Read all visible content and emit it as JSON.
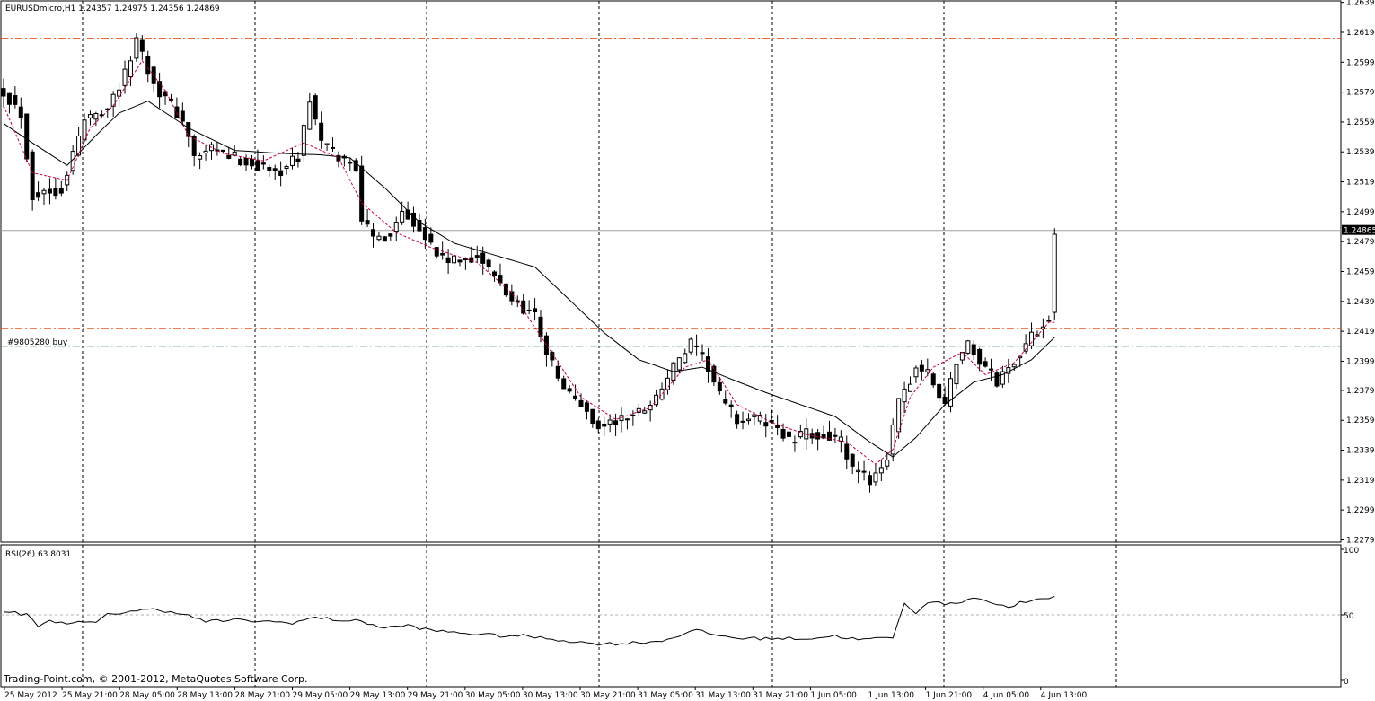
{
  "window": {
    "symbol_header": "EURUSDmicro,H1  1.24357 1.24975 1.24356 1.24869",
    "copyright": "Trading-Point.com, © 2001-2012, MetaQuotes Software Corp.",
    "current_price_label": "1.24865"
  },
  "order_line": {
    "label": "#9805280 buy",
    "price": 1.2409
  },
  "colors": {
    "background": "#ffffff",
    "grid": "#000000",
    "candle": "#000000",
    "ma_slow": "#000000",
    "ma_fast": "#c8003c",
    "level_lines": "#e8501c",
    "order_line": "#006a30",
    "price_line": "#a0a0a0",
    "rsi_line": "#000000",
    "rsi_level": "#b0b0b0"
  },
  "chart_data": [
    {
      "type": "candlestick",
      "price_ticks": [
        "1.26390",
        "1.26190",
        "1.25990",
        "1.25790",
        "1.25590",
        "1.25390",
        "1.25190",
        "1.24990",
        "1.24790",
        "1.24590",
        "1.24390",
        "1.24190",
        "1.23990",
        "1.23795",
        "1.23595",
        "1.23395",
        "1.23195",
        "1.22995",
        "1.22795"
      ],
      "ylim": [
        1.2278,
        1.264
      ],
      "time_labels": [
        "25 May 2012",
        "25 May 21:00",
        "28 May 05:00",
        "28 May 13:00",
        "28 May 21:00",
        "29 May 05:00",
        "29 May 13:00",
        "29 May 21:00",
        "30 May 05:00",
        "30 May 13:00",
        "30 May 21:00",
        "31 May 05:00",
        "31 May 13:00",
        "31 May 21:00",
        "1 Jun 05:00",
        "1 Jun 13:00",
        "1 Jun 21:00",
        "4 Jun 05:00",
        "4 Jun 13:00"
      ],
      "horizontal_levels": [
        1.2615,
        1.2421
      ],
      "current_price": 1.24865,
      "close_anchors": [
        [
          0,
          1.258
        ],
        [
          3,
          1.2565
        ],
        [
          5,
          1.251
        ],
        [
          10,
          1.2515
        ],
        [
          14,
          1.256
        ],
        [
          18,
          1.257
        ],
        [
          21,
          1.259
        ],
        [
          23,
          1.2615
        ],
        [
          26,
          1.2585
        ],
        [
          29,
          1.257
        ],
        [
          31,
          1.256
        ],
        [
          33,
          1.2535
        ],
        [
          36,
          1.254
        ],
        [
          40,
          1.2535
        ],
        [
          44,
          1.253
        ],
        [
          47,
          1.2525
        ],
        [
          51,
          1.2535
        ],
        [
          53,
          1.2575
        ],
        [
          55,
          1.2545
        ],
        [
          58,
          1.2535
        ],
        [
          61,
          1.253
        ],
        [
          62,
          1.2495
        ],
        [
          64,
          1.248
        ],
        [
          67,
          1.2485
        ],
        [
          69,
          1.25
        ],
        [
          72,
          1.249
        ],
        [
          75,
          1.247
        ],
        [
          78,
          1.2465
        ],
        [
          82,
          1.247
        ],
        [
          85,
          1.2455
        ],
        [
          88,
          1.244
        ],
        [
          92,
          1.243
        ],
        [
          94,
          1.2405
        ],
        [
          97,
          1.238
        ],
        [
          100,
          1.237
        ],
        [
          103,
          1.2355
        ],
        [
          107,
          1.236
        ],
        [
          110,
          1.2365
        ],
        [
          113,
          1.2375
        ],
        [
          116,
          1.2395
        ],
        [
          119,
          1.241
        ],
        [
          122,
          1.2395
        ],
        [
          124,
          1.2375
        ],
        [
          127,
          1.236
        ],
        [
          131,
          1.236
        ],
        [
          134,
          1.2355
        ],
        [
          136,
          1.2345
        ],
        [
          139,
          1.235
        ],
        [
          142,
          1.235
        ],
        [
          145,
          1.2345
        ],
        [
          147,
          1.2325
        ],
        [
          150,
          1.232
        ],
        [
          153,
          1.2335
        ],
        [
          155,
          1.237
        ],
        [
          158,
          1.2395
        ],
        [
          160,
          1.239
        ],
        [
          163,
          1.237
        ],
        [
          165,
          1.24
        ],
        [
          167,
          1.241
        ],
        [
          170,
          1.2395
        ],
        [
          172,
          1.2385
        ],
        [
          174,
          1.2395
        ],
        [
          176,
          1.2405
        ],
        [
          179,
          1.242
        ],
        [
          181,
          1.243
        ],
        [
          182,
          1.2487
        ]
      ],
      "series": [
        {
          "name": "",
          "role": "slow_ma",
          "anchors": [
            [
              0,
              1.2558
            ],
            [
              5,
              1.2545
            ],
            [
              11,
              1.253
            ],
            [
              16,
              1.255
            ],
            [
              20,
              1.2565
            ],
            [
              25,
              1.2573
            ],
            [
              32,
              1.2555
            ],
            [
              40,
              1.254
            ],
            [
              48,
              1.2538
            ],
            [
              55,
              1.2537
            ],
            [
              60,
              1.2535
            ],
            [
              66,
              1.2515
            ],
            [
              72,
              1.2492
            ],
            [
              78,
              1.2478
            ],
            [
              85,
              1.247
            ],
            [
              92,
              1.2462
            ],
            [
              98,
              1.244
            ],
            [
              104,
              1.2418
            ],
            [
              110,
              1.24
            ],
            [
              116,
              1.2392
            ],
            [
              121,
              1.2395
            ],
            [
              126,
              1.2387
            ],
            [
              132,
              1.2378
            ],
            [
              138,
              1.237
            ],
            [
              144,
              1.2362
            ],
            [
              150,
              1.2345
            ],
            [
              154,
              1.2335
            ],
            [
              158,
              1.2348
            ],
            [
              163,
              1.237
            ],
            [
              168,
              1.2385
            ],
            [
              173,
              1.239
            ],
            [
              178,
              1.24
            ],
            [
              182,
              1.2415
            ]
          ]
        },
        {
          "name": "",
          "role": "fast_ma",
          "anchors": [
            [
              0,
              1.257
            ],
            [
              5,
              1.2525
            ],
            [
              11,
              1.252
            ],
            [
              15,
              1.2555
            ],
            [
              19,
              1.257
            ],
            [
              24,
              1.26
            ],
            [
              28,
              1.258
            ],
            [
              32,
              1.255
            ],
            [
              38,
              1.2538
            ],
            [
              45,
              1.2533
            ],
            [
              52,
              1.2545
            ],
            [
              58,
              1.2535
            ],
            [
              62,
              1.2505
            ],
            [
              68,
              1.2485
            ],
            [
              74,
              1.2475
            ],
            [
              82,
              1.2465
            ],
            [
              88,
              1.2445
            ],
            [
              94,
              1.241
            ],
            [
              100,
              1.2375
            ],
            [
              106,
              1.236
            ],
            [
              112,
              1.2368
            ],
            [
              118,
              1.2395
            ],
            [
              122,
              1.24
            ],
            [
              127,
              1.237
            ],
            [
              133,
              1.2358
            ],
            [
              139,
              1.235
            ],
            [
              146,
              1.2345
            ],
            [
              151,
              1.233
            ],
            [
              154,
              1.234
            ],
            [
              157,
              1.2375
            ],
            [
              161,
              1.2395
            ],
            [
              166,
              1.2405
            ],
            [
              170,
              1.239
            ],
            [
              175,
              1.2398
            ],
            [
              181,
              1.2425
            ]
          ]
        }
      ]
    },
    {
      "type": "line",
      "title": "RSI(26) 63.8031",
      "y_ticks": [
        "100",
        "50",
        "0"
      ],
      "level": 50,
      "ylim": [
        0,
        100
      ],
      "series": [
        {
          "name": "RSI(26)",
          "anchors": [
            [
              0,
              53
            ],
            [
              4,
              50
            ],
            [
              6,
              42
            ],
            [
              8,
              45
            ],
            [
              12,
              44
            ],
            [
              16,
              44
            ],
            [
              18,
              50
            ],
            [
              22,
              53
            ],
            [
              26,
              54
            ],
            [
              30,
              52
            ],
            [
              35,
              45
            ],
            [
              40,
              46
            ],
            [
              45,
              45
            ],
            [
              50,
              44
            ],
            [
              54,
              48
            ],
            [
              58,
              46
            ],
            [
              62,
              45
            ],
            [
              66,
              40
            ],
            [
              70,
              42
            ],
            [
              74,
              38
            ],
            [
              80,
              36
            ],
            [
              86,
              34
            ],
            [
              90,
              34
            ],
            [
              94,
              32
            ],
            [
              98,
              30
            ],
            [
              102,
              28
            ],
            [
              106,
              28
            ],
            [
              110,
              29
            ],
            [
              114,
              30
            ],
            [
              118,
              36
            ],
            [
              120,
              38
            ],
            [
              124,
              34
            ],
            [
              128,
              32
            ],
            [
              132,
              32
            ],
            [
              136,
              32
            ],
            [
              140,
              32
            ],
            [
              144,
              34
            ],
            [
              148,
              31
            ],
            [
              152,
              32
            ],
            [
              154,
              33
            ],
            [
              156,
              58
            ],
            [
              158,
              52
            ],
            [
              160,
              60
            ],
            [
              164,
              58
            ],
            [
              168,
              63
            ],
            [
              170,
              62
            ],
            [
              172,
              57
            ],
            [
              174,
              56
            ],
            [
              176,
              59
            ],
            [
              178,
              60
            ],
            [
              180,
              62
            ],
            [
              182,
              64
            ]
          ]
        }
      ]
    }
  ]
}
